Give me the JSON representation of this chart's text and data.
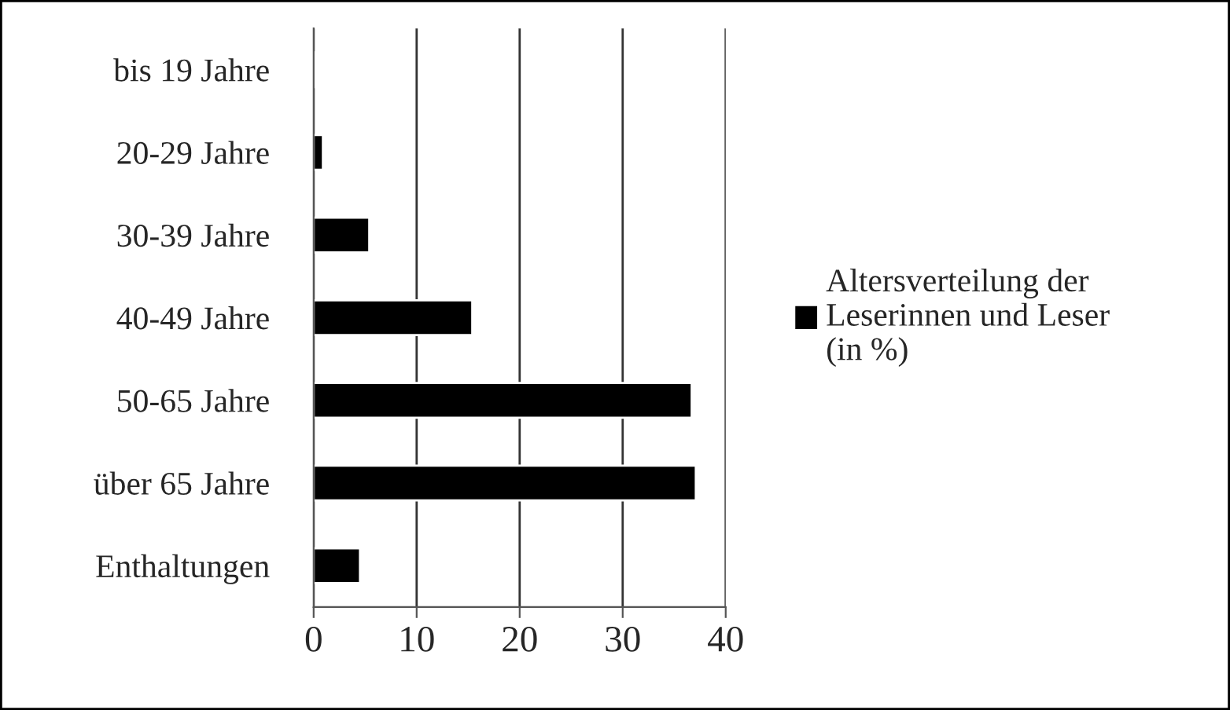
{
  "chart_data": {
    "type": "bar",
    "orientation": "horizontal",
    "categories": [
      "bis 19 Jahre",
      "20-29 Jahre",
      "30-39 Jahre",
      "40-49 Jahre",
      "50-65 Jahre",
      "über 65 Jahre",
      "Enthaltungen"
    ],
    "series": [
      {
        "name": "Altersverteilung der Leserinnen und Leser (in %)",
        "color": "#000000",
        "values": [
          0.2,
          0.9,
          5.4,
          15.4,
          36.7,
          37.1,
          4.5
        ]
      }
    ],
    "xlim": [
      0,
      40
    ],
    "xticks": [
      0,
      10,
      20,
      30,
      40
    ],
    "grid": "x",
    "legend": "right"
  }
}
